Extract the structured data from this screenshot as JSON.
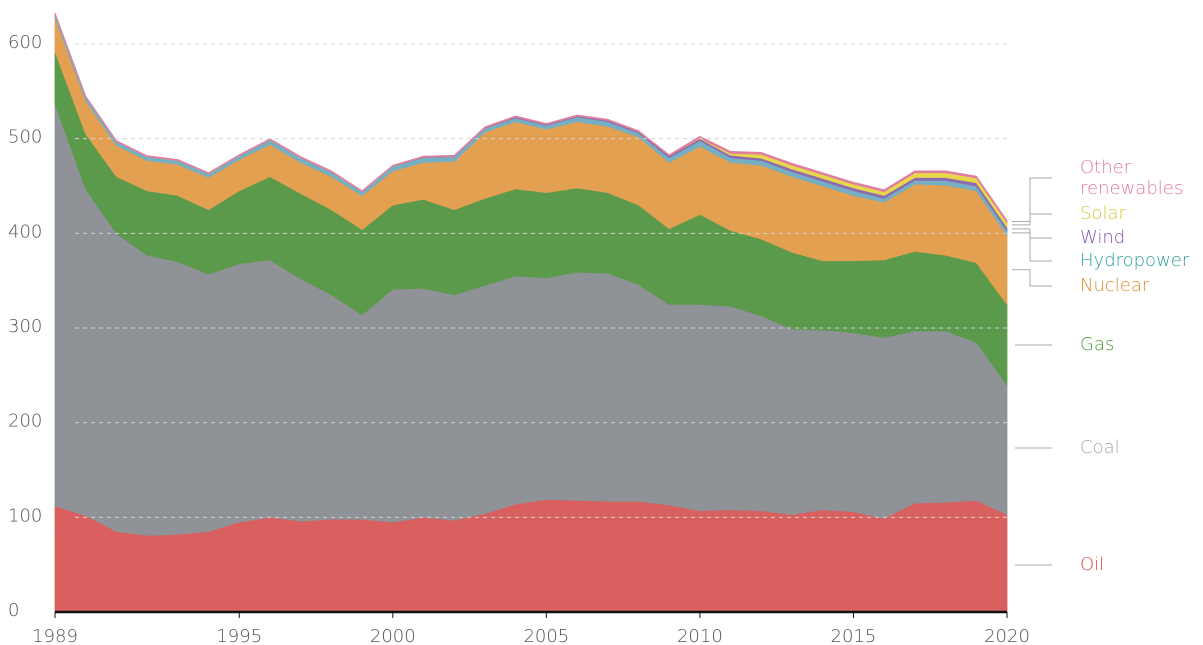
{
  "chart_data": {
    "type": "stacked_area",
    "x": [
      1989,
      1990,
      1991,
      1992,
      1993,
      1994,
      1995,
      1996,
      1997,
      1998,
      1999,
      2000,
      2001,
      2002,
      2003,
      2004,
      2005,
      2006,
      2007,
      2008,
      2009,
      2010,
      2011,
      2012,
      2013,
      2014,
      2015,
      2016,
      2017,
      2018,
      2019,
      2020
    ],
    "xlim": [
      1989,
      2020
    ],
    "xticks": [
      1989,
      1995,
      2000,
      2005,
      2010,
      2015,
      2020
    ],
    "ylim": [
      0,
      640
    ],
    "yticks": [
      0,
      100,
      200,
      300,
      400,
      500,
      600
    ],
    "grid": true,
    "series": [
      {
        "name": "Oil",
        "color": "#d9605f",
        "label_color": "#d9473d",
        "values": [
          112,
          102,
          85,
          81,
          82,
          85,
          95,
          100,
          96,
          98,
          98,
          95,
          100,
          97,
          104,
          114,
          119,
          118,
          117,
          117,
          113,
          107,
          108,
          107,
          103,
          108,
          106,
          99,
          115,
          116,
          118,
          103
        ]
      },
      {
        "name": "Coal",
        "color": "#8f9296",
        "label_color": "#a8a8a8",
        "values": [
          425,
          345,
          315,
          296,
          288,
          272,
          273,
          272,
          256,
          237,
          216,
          246,
          242,
          238,
          241,
          241,
          234,
          241,
          241,
          229,
          212,
          218,
          215,
          206,
          196,
          190,
          189,
          191,
          182,
          181,
          167,
          137
        ]
      },
      {
        "name": "Gas",
        "color": "#5b9a4b",
        "label_color": "#4c9a3a",
        "values": [
          55,
          58,
          60,
          68,
          70,
          68,
          77,
          88,
          90,
          90,
          90,
          89,
          94,
          90,
          92,
          92,
          90,
          89,
          85,
          84,
          80,
          95,
          80,
          81,
          81,
          73,
          76,
          82,
          84,
          80,
          84,
          85
        ]
      },
      {
        "name": "Nuclear",
        "color": "#e3a050",
        "label_color": "#e08a2e",
        "values": [
          36,
          35,
          33,
          32,
          33,
          34,
          33,
          34,
          33,
          35,
          36,
          36,
          39,
          51,
          70,
          71,
          67,
          70,
          70,
          72,
          70,
          72,
          72,
          78,
          80,
          79,
          69,
          61,
          71,
          74,
          76,
          73
        ]
      },
      {
        "name": "Hydropower",
        "color": "#74afc4",
        "label_color": "#2a9d9a",
        "values": [
          4,
          4,
          4,
          4,
          4,
          4,
          4,
          5,
          5,
          5,
          4,
          5,
          5,
          5,
          4,
          4,
          4,
          5,
          5,
          4,
          5,
          6,
          5,
          5,
          5,
          5,
          5,
          4,
          4,
          5,
          5,
          5
        ]
      },
      {
        "name": "Wind",
        "color": "#8e6bb0",
        "label_color": "#8655b0",
        "values": [
          0,
          0,
          0,
          0,
          0,
          0,
          0,
          0,
          0,
          0,
          0,
          0,
          0.5,
          0.5,
          0.5,
          1,
          1,
          1,
          1.5,
          1.5,
          2,
          2,
          2.5,
          2.5,
          3,
          3,
          3,
          3,
          3,
          3,
          3.5,
          3.5
        ]
      },
      {
        "name": "Solar",
        "color": "#e6d84a",
        "label_color": "#d4c832",
        "values": [
          0,
          0,
          0,
          0,
          0,
          0,
          0,
          0,
          0,
          0,
          0,
          0,
          0,
          0,
          0,
          0,
          0,
          0,
          0,
          0,
          0,
          0.5,
          2,
          4,
          4,
          4,
          4,
          4,
          5,
          5,
          5,
          5
        ]
      },
      {
        "name": "Other renewables",
        "color": "#e07ea0",
        "label_color": "#e27a9a",
        "values": [
          1,
          1,
          1,
          1,
          1,
          1,
          1,
          1,
          1,
          1,
          1,
          1,
          1,
          1,
          1,
          1,
          1,
          1,
          1,
          1,
          1,
          2,
          2,
          2,
          2,
          2,
          2,
          2,
          2,
          2,
          2,
          2
        ]
      }
    ]
  }
}
